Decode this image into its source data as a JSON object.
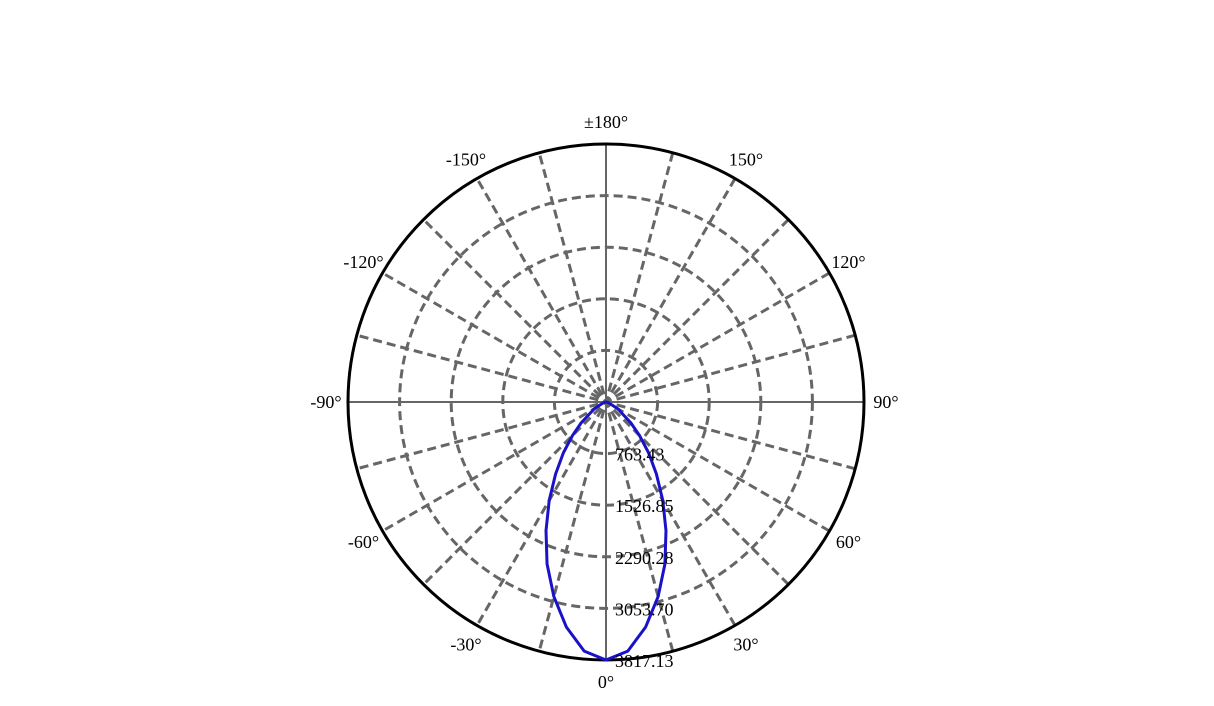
{
  "chart_data": {
    "type": "polar",
    "angle_labels": [
      {
        "deg": 0,
        "text": "0°"
      },
      {
        "deg": 30,
        "text": "30°"
      },
      {
        "deg": 60,
        "text": "60°"
      },
      {
        "deg": 90,
        "text": "90°"
      },
      {
        "deg": 120,
        "text": "120°"
      },
      {
        "deg": 150,
        "text": "150°"
      },
      {
        "deg": 180,
        "text": "±180°"
      },
      {
        "deg": -150,
        "text": "-150°"
      },
      {
        "deg": -120,
        "text": "-120°"
      },
      {
        "deg": -90,
        "text": "-90°"
      },
      {
        "deg": -60,
        "text": "-60°"
      },
      {
        "deg": -30,
        "text": "-30°"
      }
    ],
    "radial_ticks": [
      763.43,
      1526.85,
      2290.28,
      3053.7,
      3817.13
    ],
    "radial_tick_labels": [
      "763.43",
      "1526.85",
      "2290.28",
      "3053.70",
      "3817.13"
    ],
    "r_max": 3817.13,
    "spoke_step_deg": 15,
    "grid": true,
    "series": [
      {
        "color": "#1a12c8",
        "theta_deg": [
          -90,
          -75,
          -60,
          -50,
          -45,
          -40,
          -35,
          -30,
          -25,
          -20,
          -15,
          -10,
          -5,
          0,
          5,
          10,
          15,
          20,
          25,
          30,
          35,
          40,
          45,
          50,
          60,
          75,
          90
        ],
        "r": [
          0,
          40,
          200,
          480,
          700,
          980,
          1300,
          1680,
          2100,
          2550,
          2980,
          3380,
          3700,
          3817,
          3700,
          3380,
          2980,
          2550,
          2100,
          1680,
          1300,
          980,
          700,
          480,
          200,
          40,
          0
        ]
      }
    ]
  }
}
